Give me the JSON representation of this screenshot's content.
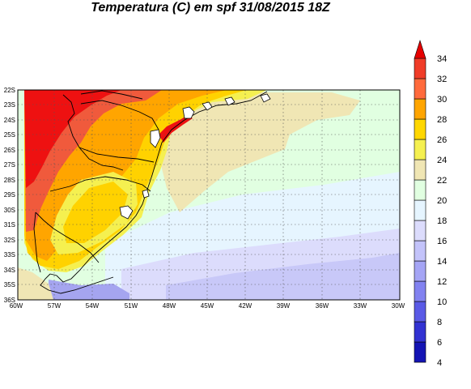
{
  "title": "Temperatura (C) em spf 31/08/2015 18Z",
  "lon_labels": [
    "60W",
    "57W",
    "54W",
    "51W",
    "48W",
    "45W",
    "42W",
    "39W",
    "36W",
    "33W",
    "30W"
  ],
  "lat_labels": [
    "22S",
    "23S",
    "24S",
    "25S",
    "26S",
    "27S",
    "28S",
    "29S",
    "30S",
    "31S",
    "32S",
    "33S",
    "34S",
    "35S",
    "36S"
  ],
  "colorbar": {
    "labels": [
      "4",
      "6",
      "8",
      "10",
      "12",
      "14",
      "16",
      "18",
      "20",
      "22",
      "24",
      "26",
      "28",
      "30",
      "32",
      "34"
    ],
    "colors": [
      "#00008f",
      "#1414b4",
      "#3232d2",
      "#5a5ae6",
      "#8282f0",
      "#a5a5f5",
      "#c3c3fa",
      "#dcdcfc",
      "#e6f5ff",
      "#e1ffe1",
      "#f0e6b4",
      "#f5f050",
      "#ffd700",
      "#ffa500",
      "#ff6a3c",
      "#f03c28",
      "#e60000"
    ]
  },
  "palette": {
    "red": "#ee1111",
    "redorange": "#f05a3c",
    "orange": "#ffa500",
    "gold": "#ffd200",
    "yellow": "#f5f050",
    "khaki": "#f0e6b4",
    "lightgreen": "#e1ffe1",
    "lightcyan": "#e6f5ff",
    "lavender": "#dcdcfc",
    "lilac": "#c8c8f8",
    "periwinkle": "#a5a5f0"
  }
}
